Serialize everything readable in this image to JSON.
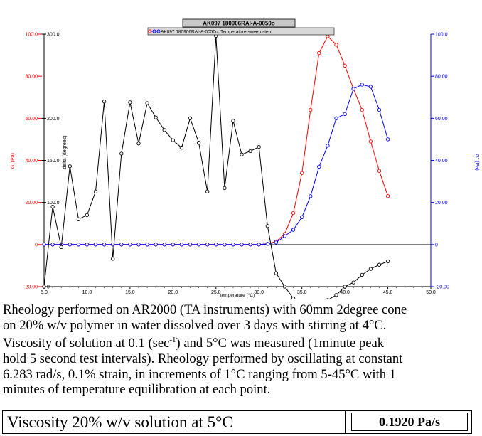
{
  "chart_data": {
    "type": "line",
    "title": "AK097 180906RAI-A-0050o",
    "legend_label": "AK097 180906RAI-A-0050o, Temperature sweep step",
    "xlabel": "temperature (°C)",
    "ylabel_left": "G' (Pa)",
    "ylabel_left_inner": "delta (degrees)",
    "ylabel_right": "G'' (Pa)",
    "xlim": [
      5.0,
      50.0
    ],
    "ylim_gp": [
      -20.0,
      100.0
    ],
    "ylim_delta": [
      0,
      300.0
    ],
    "ylim_gpp": [
      -20.0,
      100.0
    ],
    "x_ticks": [
      "5.0",
      "10.0",
      "15.0",
      "20.0",
      "25.0",
      "30.0",
      "35.0",
      "40.0",
      "45.0",
      "50.0"
    ],
    "gp_ticks": [
      "-20.00",
      "0",
      "20.00",
      "40.00",
      "60.00",
      "80.00",
      "100.0"
    ],
    "delta_ticks": [
      "0",
      "100.0",
      "150.0",
      "200.0",
      "300.0"
    ],
    "gpp_ticks": [
      "-20.00",
      "0",
      "20.00",
      "40.00",
      "60.00",
      "80.00",
      "100.0"
    ],
    "colors": {
      "gp": "#ff0000",
      "gpp": "#0000ff",
      "delta": "#000000",
      "axis": "#000000"
    },
    "series": [
      {
        "name": "G' (Pa)",
        "axis": "left",
        "color": "#ff0000",
        "x": [
          5,
          6,
          7,
          8,
          9,
          10,
          11,
          12,
          13,
          14,
          15,
          16,
          17,
          18,
          19,
          20,
          21,
          22,
          23,
          24,
          25,
          26,
          27,
          28,
          29,
          30,
          31,
          32,
          33,
          34,
          35,
          36,
          37,
          38,
          39,
          40,
          41,
          42,
          43,
          44,
          45
        ],
        "y": [
          0,
          0,
          0,
          0,
          0,
          0,
          0,
          0,
          0,
          0,
          0,
          0,
          0,
          0,
          0,
          0,
          0,
          0,
          0,
          0,
          0,
          0,
          0,
          0,
          0,
          0,
          0.3,
          1.5,
          5,
          15,
          34,
          64,
          91,
          99,
          95,
          85,
          74,
          64,
          49,
          35,
          23
        ]
      },
      {
        "name": "G'' (Pa)",
        "axis": "right",
        "color": "#0000ff",
        "x": [
          5,
          6,
          7,
          8,
          9,
          10,
          11,
          12,
          13,
          14,
          15,
          16,
          17,
          18,
          19,
          20,
          21,
          22,
          23,
          24,
          25,
          26,
          27,
          28,
          29,
          30,
          31,
          32,
          33,
          34,
          35,
          36,
          37,
          38,
          39,
          40,
          41,
          42,
          43,
          44,
          45
        ],
        "y": [
          0,
          0,
          0,
          0,
          0,
          0,
          0,
          0,
          0,
          0,
          0,
          0,
          0,
          0,
          0,
          0,
          0,
          0,
          0,
          0,
          0,
          0,
          0,
          0,
          0,
          0,
          0.3,
          1,
          4,
          7,
          13,
          23,
          37,
          47,
          60,
          62,
          74,
          76,
          75,
          64,
          50
        ]
      },
      {
        "name": "delta (degrees)",
        "axis": "left-inner",
        "color": "#000000",
        "x": [
          5,
          6,
          7,
          8,
          9,
          10,
          11,
          12,
          13,
          14,
          15,
          16,
          17,
          18,
          19,
          20,
          21,
          22,
          23,
          24,
          25,
          26,
          27,
          28,
          29,
          30,
          31,
          32,
          33,
          34,
          35,
          36,
          37,
          38,
          39,
          40,
          41,
          42,
          43,
          44,
          45
        ],
        "y": [
          0,
          95,
          47,
          143,
          80,
          85,
          113,
          220,
          33,
          158,
          219,
          170,
          218,
          201,
          186,
          174,
          165,
          200,
          171,
          113,
          298,
          117,
          197,
          157,
          161,
          166,
          72,
          16,
          0,
          -14,
          -18,
          -20,
          -19,
          -16,
          -10,
          0,
          5,
          14,
          21,
          26,
          30
        ]
      }
    ]
  },
  "caption": {
    "line1": "Rheology performed on AR2000 (TA instruments) with 60mm 2degree cone",
    "line2": "on 20% w/v polymer in water dissolved over 3 days with stirring at 4°C.",
    "line3_pre": "Viscosity of solution at 0.1 (sec",
    "line3_sup": "-1",
    "line3_post": ") and 5°C was measured (1minute peak",
    "line4": "hold 5 second test intervals). Rheology performed by oscillating at constant",
    "line5": "6.283 rad/s, 0.1% strain, in increments of 1°C ranging from 5-45°C with 1",
    "line6": "minutes of temperature equilibration at each point."
  },
  "viscosity_table": {
    "label": "Viscosity 20% w/v solution at 5°C",
    "value": "0.1920 Pa/s"
  }
}
